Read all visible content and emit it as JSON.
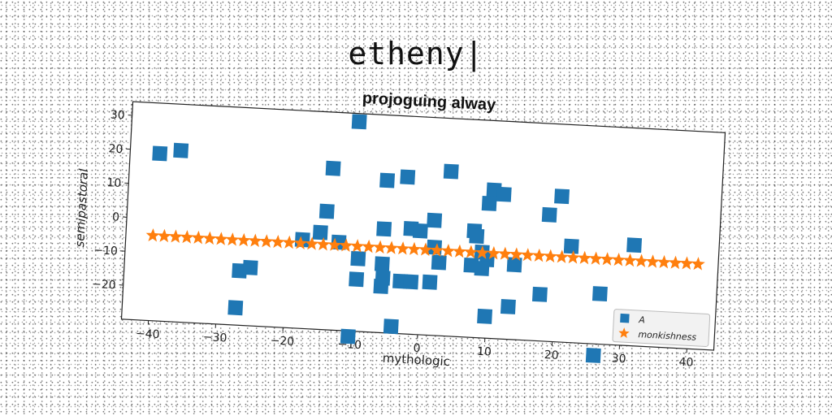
{
  "page_title": "etheny|",
  "chart_data": {
    "type": "scatter",
    "title": "projoguing alway",
    "xlabel": "mythologic",
    "ylabel": "semipastoral",
    "xlim": [
      -44,
      44
    ],
    "ylim": [
      -30,
      34
    ],
    "xticks": [
      -40,
      -30,
      -20,
      -10,
      0,
      10,
      20,
      30,
      40
    ],
    "yticks": [
      -20,
      -10,
      0,
      10,
      20,
      30
    ],
    "xtick_labels": [
      "−40",
      "−30",
      "−20",
      "−10",
      "0",
      "10",
      "20",
      "30",
      "40"
    ],
    "ytick_labels": [
      "−20",
      "−10",
      "0",
      "10",
      "20",
      "30"
    ],
    "grid": false,
    "legend_position": "bottom-right",
    "rotation_deg": 3,
    "series": [
      {
        "name": "A",
        "marker": "square",
        "color": "#1f77b4",
        "points": [
          [
            -39.6,
            19.2
          ],
          [
            -36.5,
            20.4
          ],
          [
            -10.3,
            31.6
          ],
          [
            -13.8,
            17.5
          ],
          [
            -5.7,
            14.8
          ],
          [
            -2.7,
            16.1
          ],
          [
            3.7,
            18.4
          ],
          [
            10.2,
            13.6
          ],
          [
            11.7,
            12.5
          ],
          [
            20.3,
            12.8
          ],
          [
            9.6,
            9.6
          ],
          [
            18.6,
            7.2
          ],
          [
            -14.4,
            4.8
          ],
          [
            1.6,
            3.8
          ],
          [
            -5.8,
            0.5
          ],
          [
            -1.8,
            1.0
          ],
          [
            -0.4,
            0.5
          ],
          [
            7.6,
            1.3
          ],
          [
            8.0,
            -0.2
          ],
          [
            22.1,
            -1.7
          ],
          [
            31.4,
            -0.4
          ],
          [
            -15.2,
            -1.5
          ],
          [
            -17.8,
            -3.9
          ],
          [
            -12.4,
            -4.1
          ],
          [
            1.8,
            -4.1
          ],
          [
            8.9,
            -4.8
          ],
          [
            9.7,
            -6.9
          ],
          [
            -9.4,
            -8.6
          ],
          [
            2.6,
            -8.5
          ],
          [
            7.4,
            -8.8
          ],
          [
            9.0,
            -9.6
          ],
          [
            13.8,
            -8.0
          ],
          [
            -5.8,
            -9.8
          ],
          [
            -9.5,
            -14.7
          ],
          [
            -5.6,
            -13.9
          ],
          [
            -3.0,
            -14.6
          ],
          [
            -1.4,
            -14.6
          ],
          [
            1.4,
            -14.4
          ],
          [
            -26.9,
            -14.0
          ],
          [
            -25.3,
            -12.9
          ],
          [
            -5.8,
            -16.4
          ],
          [
            17.8,
            -16.3
          ],
          [
            26.7,
            -15.2
          ],
          [
            13.2,
            -20.4
          ],
          [
            9.8,
            -23.6
          ],
          [
            -27.2,
            -24.9
          ],
          [
            -4.0,
            -28.0
          ],
          [
            -10.3,
            -31.6
          ],
          [
            26.2,
            -33.4
          ]
        ]
      },
      {
        "name": "monkishness",
        "marker": "star",
        "color": "#ff7f0e",
        "x_start": -40,
        "x_end": 41,
        "count": 49,
        "y": -5
      }
    ]
  }
}
